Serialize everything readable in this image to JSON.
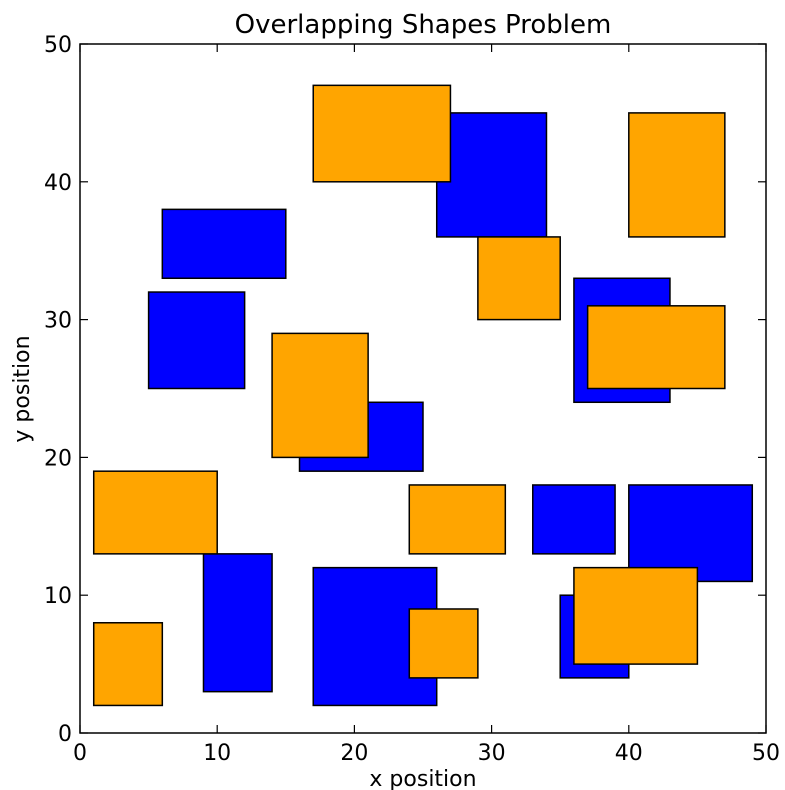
{
  "chart_data": {
    "type": "rectangles",
    "title": "Overlapping Shapes Problem",
    "xlabel": "x position",
    "ylabel": "y position",
    "xlim": [
      0,
      50
    ],
    "ylim": [
      0,
      50
    ],
    "xticks": [
      0,
      10,
      20,
      30,
      40,
      50
    ],
    "yticks": [
      0,
      10,
      20,
      30,
      40,
      50
    ],
    "grid": false,
    "colors": {
      "blue": "#0000ff",
      "orange": "#ffa500",
      "edge": "#000000"
    },
    "series": [
      {
        "color": "blue",
        "rects": [
          {
            "x0": 26,
            "x1": 34,
            "y0": 36,
            "y1": 45
          },
          {
            "x0": 6,
            "x1": 15,
            "y0": 33,
            "y1": 38
          },
          {
            "x0": 5,
            "x1": 12,
            "y0": 25,
            "y1": 32
          },
          {
            "x0": 36,
            "x1": 43,
            "y0": 24,
            "y1": 33
          },
          {
            "x0": 16,
            "x1": 25,
            "y0": 19,
            "y1": 24
          },
          {
            "x0": 33,
            "x1": 39,
            "y0": 13,
            "y1": 18
          },
          {
            "x0": 40,
            "x1": 49,
            "y0": 11,
            "y1": 18
          },
          {
            "x0": 9,
            "x1": 14,
            "y0": 3,
            "y1": 13
          },
          {
            "x0": 17,
            "x1": 26,
            "y0": 2,
            "y1": 12
          },
          {
            "x0": 35,
            "x1": 40,
            "y0": 4,
            "y1": 10
          }
        ]
      },
      {
        "color": "orange",
        "rects": [
          {
            "x0": 17,
            "x1": 27,
            "y0": 40,
            "y1": 47
          },
          {
            "x0": 40,
            "x1": 47,
            "y0": 36,
            "y1": 45
          },
          {
            "x0": 29,
            "x1": 35,
            "y0": 30,
            "y1": 36
          },
          {
            "x0": 37,
            "x1": 47,
            "y0": 25,
            "y1": 31
          },
          {
            "x0": 14,
            "x1": 21,
            "y0": 20,
            "y1": 29
          },
          {
            "x0": 1,
            "x1": 10,
            "y0": 13,
            "y1": 19
          },
          {
            "x0": 24,
            "x1": 31,
            "y0": 13,
            "y1": 18
          },
          {
            "x0": 36,
            "x1": 45,
            "y0": 5,
            "y1": 12
          },
          {
            "x0": 24,
            "x1": 29,
            "y0": 4,
            "y1": 9
          },
          {
            "x0": 1,
            "x1": 6,
            "y0": 2,
            "y1": 8
          }
        ]
      }
    ]
  }
}
